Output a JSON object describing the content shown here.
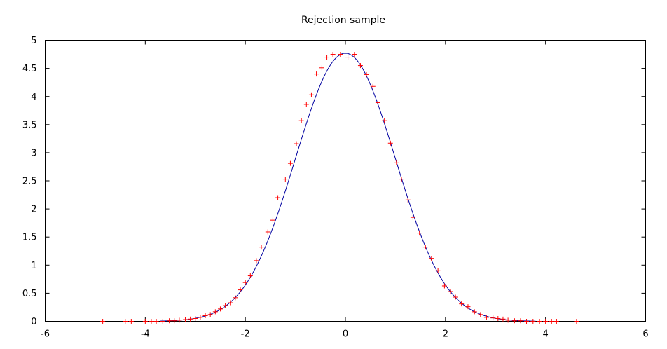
{
  "chart_data": {
    "type": "scatter",
    "title": "Rejection sample",
    "xlabel": "",
    "ylabel": "",
    "xlim": [
      -6,
      6
    ],
    "ylim": [
      0,
      5
    ],
    "xticks": [
      -6,
      -4,
      -2,
      0,
      2,
      4,
      6
    ],
    "yticks": [
      0,
      0.5,
      1,
      1.5,
      2,
      2.5,
      3,
      3.5,
      4,
      4.5,
      5
    ],
    "xtick_labels": [
      "-6",
      "-4",
      "-2",
      "0",
      "2",
      "4",
      "6"
    ],
    "ytick_labels": [
      "0",
      "0.5",
      "1",
      "1.5",
      "2",
      "2.5",
      "3",
      "3.5",
      "4",
      "4.5",
      "5"
    ],
    "grid": false,
    "legend": "none",
    "series": [
      {
        "kind": "points",
        "marker": "plus",
        "color": "#ff0000",
        "points": [
          [
            -4.85,
            0
          ],
          [
            -4.4,
            0
          ],
          [
            -4.28,
            0
          ],
          [
            -4.0,
            0
          ],
          [
            -3.88,
            0
          ],
          [
            -3.78,
            0
          ],
          [
            -3.65,
            0
          ],
          [
            -3.52,
            0.01
          ],
          [
            -3.42,
            0.01
          ],
          [
            -3.32,
            0.02
          ],
          [
            -3.2,
            0.03
          ],
          [
            -3.1,
            0.04
          ],
          [
            -3.0,
            0.05
          ],
          [
            -2.9,
            0.07
          ],
          [
            -2.8,
            0.1
          ],
          [
            -2.7,
            0.12
          ],
          [
            -2.6,
            0.17
          ],
          [
            -2.5,
            0.22
          ],
          [
            -2.4,
            0.28
          ],
          [
            -2.3,
            0.33
          ],
          [
            -2.2,
            0.42
          ],
          [
            -2.1,
            0.56
          ],
          [
            -2.0,
            0.69
          ],
          [
            -1.9,
            0.81
          ],
          [
            -1.78,
            1.08
          ],
          [
            -1.68,
            1.32
          ],
          [
            -1.55,
            1.59
          ],
          [
            -1.45,
            1.8
          ],
          [
            -1.35,
            2.2
          ],
          [
            -1.2,
            2.53
          ],
          [
            -1.1,
            2.81
          ],
          [
            -0.98,
            3.16
          ],
          [
            -0.88,
            3.57
          ],
          [
            -0.78,
            3.86
          ],
          [
            -0.68,
            4.03
          ],
          [
            -0.58,
            4.4
          ],
          [
            -0.47,
            4.51
          ],
          [
            -0.37,
            4.7
          ],
          [
            -0.25,
            4.75
          ],
          [
            -0.1,
            4.75
          ],
          [
            0.05,
            4.7
          ],
          [
            0.18,
            4.75
          ],
          [
            0.3,
            4.55
          ],
          [
            0.42,
            4.39
          ],
          [
            0.55,
            4.18
          ],
          [
            0.65,
            3.89
          ],
          [
            0.78,
            3.57
          ],
          [
            0.9,
            3.17
          ],
          [
            1.02,
            2.82
          ],
          [
            1.12,
            2.53
          ],
          [
            1.25,
            2.16
          ],
          [
            1.35,
            1.85
          ],
          [
            1.48,
            1.57
          ],
          [
            1.6,
            1.32
          ],
          [
            1.72,
            1.12
          ],
          [
            1.85,
            0.9
          ],
          [
            1.98,
            0.63
          ],
          [
            2.1,
            0.53
          ],
          [
            2.2,
            0.43
          ],
          [
            2.32,
            0.31
          ],
          [
            2.45,
            0.26
          ],
          [
            2.58,
            0.17
          ],
          [
            2.7,
            0.12
          ],
          [
            2.82,
            0.07
          ],
          [
            2.95,
            0.06
          ],
          [
            3.05,
            0.05
          ],
          [
            3.15,
            0.04
          ],
          [
            3.25,
            0.02
          ],
          [
            3.38,
            0.01
          ],
          [
            3.5,
            0.01
          ],
          [
            3.62,
            0
          ],
          [
            3.75,
            0
          ],
          [
            3.88,
            0
          ],
          [
            4.0,
            0
          ],
          [
            4.12,
            0
          ],
          [
            4.22,
            0
          ],
          [
            4.62,
            0
          ]
        ]
      },
      {
        "kind": "curve",
        "function": "4.77*exp(-x^2/2)",
        "color": "#0000a0",
        "x_range": [
          -3.7,
          3.8
        ],
        "peak": 4.77
      }
    ]
  }
}
